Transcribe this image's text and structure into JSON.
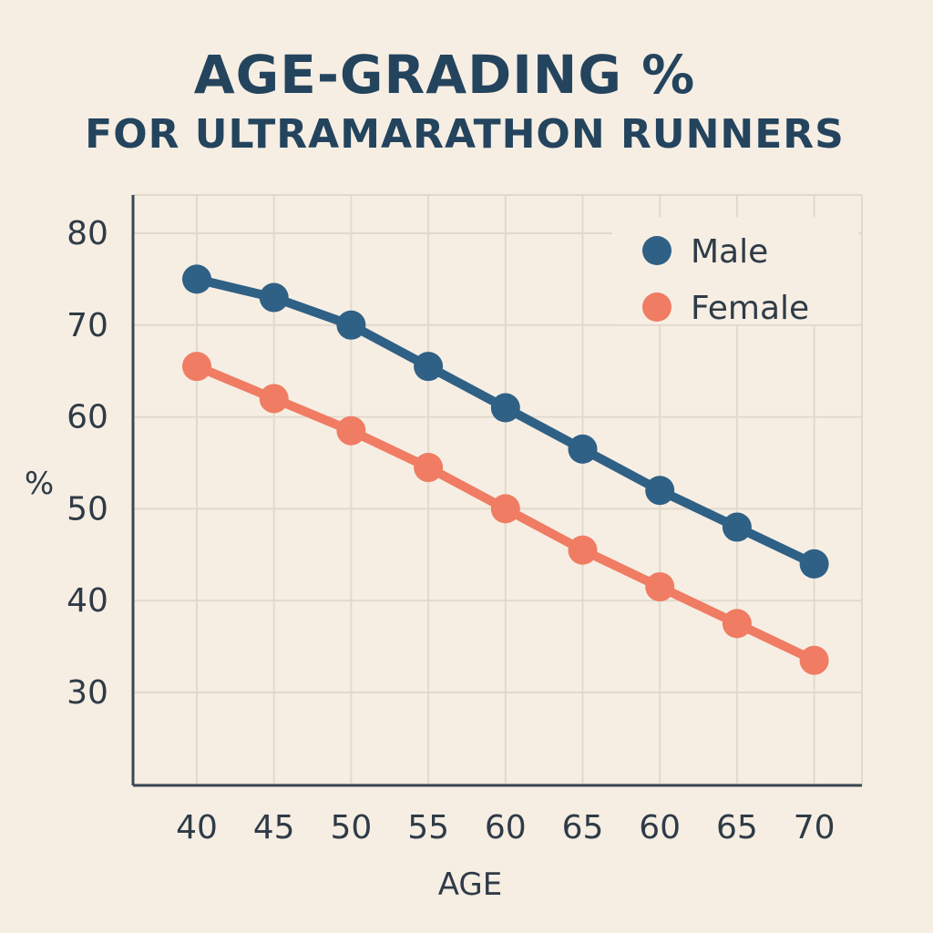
{
  "chart_data": {
    "type": "line",
    "title": "AGE-GRADING %",
    "subtitle": "FOR ULTRAMARATHON RUNNERS",
    "xlabel": "AGE",
    "ylabel": "%",
    "categories": [
      "40",
      "45",
      "50",
      "55",
      "60",
      "65",
      "60",
      "65",
      "70"
    ],
    "yticks": [
      "80",
      "70",
      "60",
      "50",
      "40",
      "30"
    ],
    "ylim": [
      20,
      80
    ],
    "grid": true,
    "legend_position": "top-right",
    "series": [
      {
        "name": "Male",
        "color": "#2f6085",
        "values": [
          75,
          73,
          70,
          65.5,
          61,
          56.5,
          52,
          48,
          44
        ]
      },
      {
        "name": "Female",
        "color": "#ef7c63",
        "values": [
          65.5,
          62,
          58.5,
          54.5,
          50,
          45.5,
          41.5,
          37.5,
          33.5
        ]
      }
    ],
    "colors": {
      "grid": "#e2d9cd",
      "axis": "#3a4652",
      "text": "#2f3b47",
      "title": "#24445e"
    }
  }
}
